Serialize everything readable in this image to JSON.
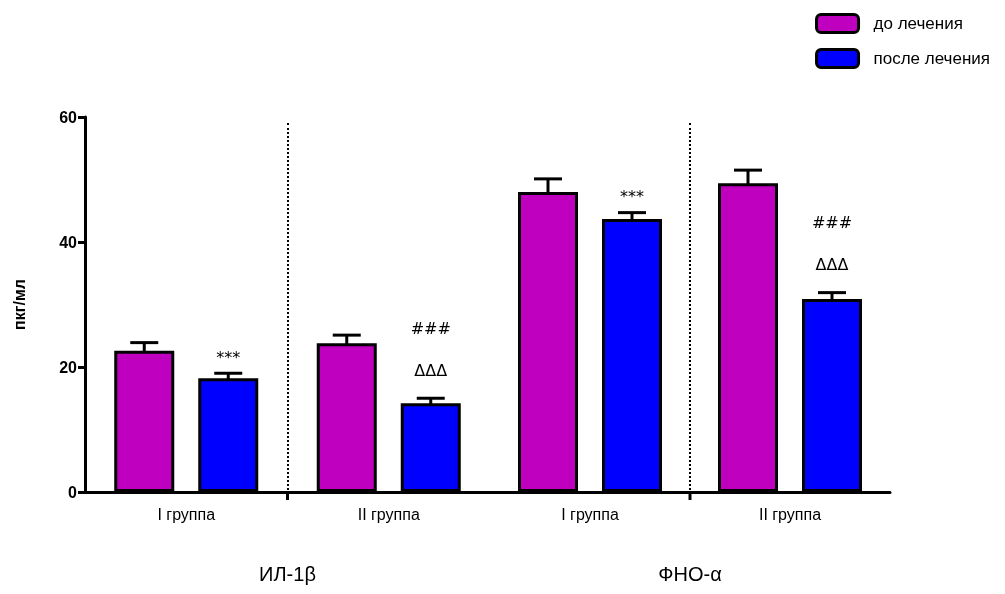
{
  "chart_data": [
    {
      "type": "bar",
      "xlabel": "ИЛ-1β",
      "ylabel": "пкг/мл",
      "categories": [
        "I группа",
        "II группа"
      ],
      "series": [
        {
          "color": "#bf00bf",
          "values": [
            22.6,
            23.8
          ],
          "errors": [
            1.3,
            1.3
          ]
        },
        {
          "color": "#0000ff",
          "values": [
            18.2,
            14.2
          ],
          "errors": [
            0.8,
            0.8
          ]
        }
      ],
      "ylim": [
        0,
        60
      ],
      "yticks": [
        0,
        20,
        40,
        60
      ],
      "grid": false,
      "legend": false,
      "annotations": [
        "***",
        "###",
        "ΔΔΔ"
      ]
    },
    {
      "type": "bar",
      "xlabel": "ФНО-α",
      "categories": [
        "I группа",
        "II группа"
      ],
      "series": [
        {
          "name": "до лечения",
          "color": "#bf00bf",
          "values": [
            48.0,
            49.4
          ],
          "errors": [
            2.1,
            2.1
          ]
        },
        {
          "name": "после лечения",
          "color": "#0000ff",
          "values": [
            43.7,
            30.9
          ],
          "errors": [
            1.0,
            1.0
          ]
        }
      ],
      "ylim": [
        0,
        60
      ],
      "yticks": [
        0,
        20,
        40,
        60
      ],
      "grid": false,
      "legend": "top right",
      "tick_labels": "x",
      "annotations": [
        "***",
        "###",
        "ΔΔΔ"
      ]
    }
  ]
}
